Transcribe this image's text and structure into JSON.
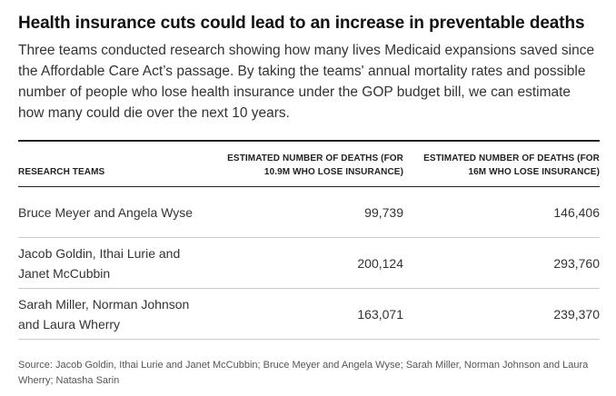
{
  "title": "Health insurance cuts could lead to an increase in preventable deaths",
  "subtitle": "Three teams conducted research showing how many lives Medicaid expansions saved since the Affordable Care Act’s passage. By taking the teams' annual mortality rates and possible number of people who lose health insurance under the GOP budget bill, we can estimate how many could die over the next 10 years.",
  "table": {
    "headers": [
      "RESEARCH TEAMS",
      "ESTIMATED NUMBER OF DEATHS (FOR 10.9M WHO LOSE INSURANCE)",
      "ESTIMATED NUMBER OF DEATHS (FOR 16M WHO LOSE INSURANCE)"
    ],
    "rows": [
      {
        "team": "Bruce Meyer and Angela Wyse",
        "deaths_10_9m": "99,739",
        "deaths_16m": "146,406"
      },
      {
        "team": "Jacob Goldin, Ithai Lurie and Janet McCubbin",
        "deaths_10_9m": "200,124",
        "deaths_16m": "293,760"
      },
      {
        "team": "Sarah Miller, Norman Johnson and Laura Wherry",
        "deaths_10_9m": "163,071",
        "deaths_16m": "239,370"
      }
    ]
  },
  "source": "Source: Jacob Goldin, Ithai Lurie and Janet McCubbin; Bruce Meyer and Angela Wyse; Sarah Miller, Norman Johnson and Laura Wherry; Natasha Sarin"
}
